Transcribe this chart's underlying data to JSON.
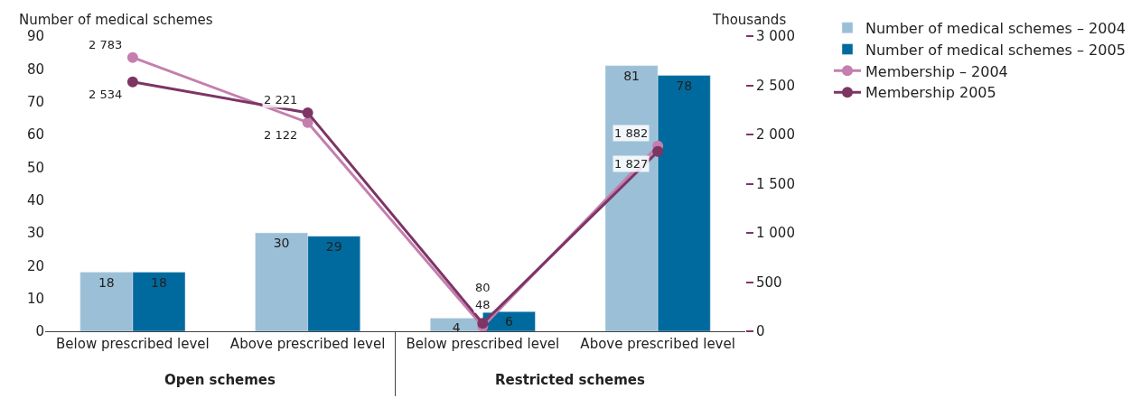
{
  "chart_data": {
    "type": "bar",
    "categories": [
      "Below prescribed level",
      "Above prescribed level",
      "Below prescribed level",
      "Above prescribed level"
    ],
    "series": [
      {
        "name": "Number of medical schemes – 2004",
        "color": "#9bbfd6",
        "values": [
          18,
          30,
          4,
          81
        ],
        "value_labels": [
          "18",
          "30",
          "4",
          "81"
        ]
      },
      {
        "name": "Number of medical schemes – 2005",
        "color": "#006a9e",
        "values": [
          18,
          29,
          6,
          78
        ],
        "value_labels": [
          "18",
          "29",
          "6",
          "78"
        ]
      },
      {
        "name": "Membership – 2004",
        "type": "line",
        "axis": "y2",
        "color": "#c47fae",
        "values": [
          2783,
          2122,
          48,
          1882
        ],
        "value_labels": [
          "2 783",
          "2 122",
          "48",
          "1 882"
        ]
      },
      {
        "name": "Membership 2005",
        "type": "line",
        "axis": "y2",
        "color": "#7d3564",
        "values": [
          2534,
          2221,
          80,
          1827
        ],
        "value_labels": [
          "2 534",
          "2 221",
          "80",
          "1 827"
        ]
      }
    ],
    "ylabel": "Number of medical schemes",
    "y2label": "Thousands",
    "ylim": [
      0,
      90
    ],
    "yticks": [
      0,
      10,
      20,
      30,
      40,
      50,
      60,
      70,
      80,
      90
    ],
    "y2lim": [
      0,
      3000
    ],
    "y2ticks": [
      0,
      500,
      {
        "value": 1000,
        "label": "1 000"
      },
      {
        "value": 1500,
        "label": "1 500"
      },
      {
        "value": 2000,
        "label": "2 000"
      },
      {
        "value": 2500,
        "label": "2 500"
      },
      {
        "value": 3000,
        "label": "3 000"
      }
    ],
    "annotations": [
      "Open schemes",
      "Restricted schemes"
    ],
    "marker": "circle",
    "legend": "top right"
  }
}
